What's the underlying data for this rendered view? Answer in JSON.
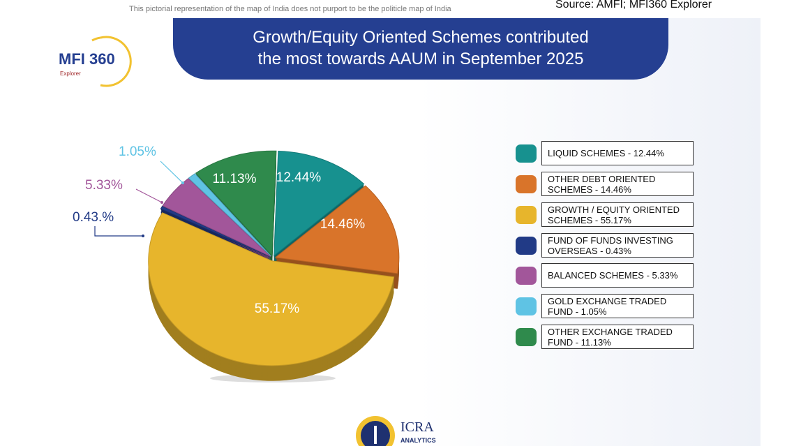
{
  "disclaimer": "This pictorial representation of the map of India does not purport to be the politicle map of India",
  "source": "Source: AMFI; MFI360 Explorer",
  "logo": {
    "main": "MFI 360",
    "sub": "Explorer"
  },
  "footer_logo": {
    "main": "ICRA",
    "sub": "ANALYTICS"
  },
  "chart_data": {
    "type": "pie",
    "title_line1": "Growth/Equity Oriented Schemes contributed",
    "title_line2": "the most towards AAUM in September 2025",
    "slices": [
      {
        "name": "LIQUID SCHEMES",
        "value": 12.44,
        "label": "12.44%",
        "legend": "LIQUID SCHEMES - 12.44%",
        "color": "#17918f"
      },
      {
        "name": "OTHER DEBT ORIENTED SCHEMES",
        "value": 14.46,
        "label": "14.46%",
        "legend": "OTHER DEBT ORIENTED SCHEMES - 14.46%",
        "color": "#d9742a"
      },
      {
        "name": "GROWTH / EQUITY ORIENTED SCHEMES",
        "value": 55.17,
        "label": "55.17%",
        "legend": "GROWTH / EQUITY ORIENTED SCHEMES - 55.17%",
        "color": "#e7b52c"
      },
      {
        "name": "FUND OF FUNDS INVESTING OVERSEAS",
        "value": 0.43,
        "label": "0.43.%",
        "legend": "FUND OF FUNDS INVESTING OVERSEAS - 0.43%",
        "color": "#213a86"
      },
      {
        "name": "BALANCED SCHEMES",
        "value": 5.33,
        "label": "5.33%",
        "legend": "BALANCED SCHEMES - 5.33%",
        "color": "#a2569a"
      },
      {
        "name": "GOLD EXCHANGE TRADED FUND",
        "value": 1.05,
        "label": "1.05%",
        "legend": "GOLD EXCHANGE TRADED FUND - 1.05%",
        "color": "#5fc3e4"
      },
      {
        "name": "OTHER EXCHANGE TRADED FUND",
        "value": 11.13,
        "label": "11.13%",
        "legend": "OTHER EXCHANGE TRADED FUND - 11.13%",
        "color": "#2f8a4c"
      }
    ]
  }
}
